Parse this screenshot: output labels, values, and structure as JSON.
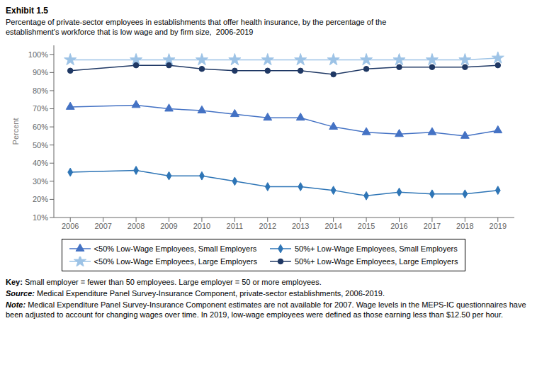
{
  "chart_data": {
    "type": "line",
    "title": "Exhibit 1.5",
    "subtitle": [
      "Percentage of private-sector employees in establishments that offer health insurance, by the percentage of the",
      "establishment's workforce that is low wage and by firm size,  2006-2019"
    ],
    "y_label": "Percent",
    "x": [
      2006,
      2008,
      2009,
      2010,
      2011,
      2012,
      2013,
      2014,
      2015,
      2016,
      2017,
      2018,
      2019
    ],
    "series": [
      {
        "name": "<50% Low-Wage Employees, Small Employers",
        "color": "#4472C4",
        "marker": "triangle",
        "line_style": "solid",
        "values": [
          71,
          72,
          70,
          69,
          67,
          65,
          65,
          60,
          57,
          56,
          57,
          55,
          58
        ]
      },
      {
        "name": "50%+ Low-Wage Employees, Small Employers",
        "color": "#2E75B6",
        "marker": "diamond",
        "line_style": "solid",
        "values": [
          35,
          36,
          33,
          33,
          30,
          27,
          27,
          25,
          22,
          24,
          23,
          23,
          25
        ]
      },
      {
        "name": "<50% Low-Wage Employees, Large Employers",
        "color": "#9DC3E6",
        "marker": "star",
        "line_style": "solid",
        "values": [
          97,
          97,
          97,
          97,
          97,
          97,
          97,
          97,
          97,
          97,
          97,
          97,
          98
        ]
      },
      {
        "name": "50%+ Low-Wage Employees, Large Employers",
        "color": "#1F3864",
        "marker": "circle",
        "line_style": "solid",
        "values": [
          91,
          94,
          94,
          92,
          91,
          91,
          91,
          89,
          92,
          93,
          93,
          93,
          94
        ]
      }
    ],
    "xlim": [
      2005.5,
      2019.5
    ],
    "xticks": [
      2006,
      2007,
      2008,
      2009,
      2010,
      2011,
      2012,
      2013,
      2014,
      2015,
      2016,
      2017,
      2018,
      2019
    ],
    "ylim": [
      10,
      105
    ],
    "yticks": [
      {
        "value": 10,
        "label": "10%"
      },
      {
        "value": 20,
        "label": "20%"
      },
      {
        "value": 30,
        "label": "30%"
      },
      {
        "value": 40,
        "label": "40%"
      },
      {
        "value": 50,
        "label": "50%"
      },
      {
        "value": 60,
        "label": "60%"
      },
      {
        "value": 70,
        "label": "70%"
      },
      {
        "value": 80,
        "label": "80%"
      },
      {
        "value": 90,
        "label": "90%"
      },
      {
        "value": 100,
        "label": "100%"
      }
    ],
    "grid": false,
    "legend": "bottom",
    "annotations": [
      {
        "label": "Key:",
        "text": " Small employer = fewer than 50 employees. Large employer = 50 or more employees."
      },
      {
        "label": "Source:",
        "text": " Medical Expenditure Panel Survey-Insurance Component, private-sector establishments, 2006-2019."
      },
      {
        "label": "Note:",
        "text": " Medical Expenditure Panel Survey-Insurance Component estimates are not available for 2007. Wage levels in the MEPS-IC questionnaires have been adjusted to account for changing wages over time. In 2019, low-wage employees were defined as those earning less than $12.50 per hour."
      }
    ]
  }
}
